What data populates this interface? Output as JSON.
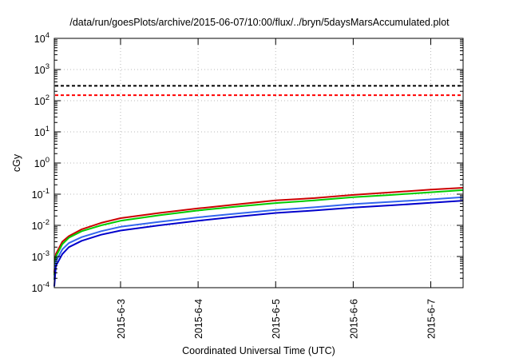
{
  "chart_data": {
    "type": "line",
    "title": "/data/run/goesPlots/archive/2015-06-07/10:00/flux/../bryn/5daysMarsAccumulated.plot",
    "xlabel": "Coordinated Universal Time (UTC)",
    "ylabel": "cGy",
    "y_scale": "log",
    "ylim": [
      0.0001,
      10000
    ],
    "xlim": [
      "2015-06-02T03:30",
      "2015-06-07T10:00"
    ],
    "y_ticks": [
      {
        "base": "10",
        "exp": "-4",
        "value": 0.0001
      },
      {
        "base": "10",
        "exp": "-3",
        "value": 0.001
      },
      {
        "base": "10",
        "exp": "-2",
        "value": 0.01
      },
      {
        "base": "10",
        "exp": "-1",
        "value": 0.1
      },
      {
        "base": "10",
        "exp": "0",
        "value": 1
      },
      {
        "base": "10",
        "exp": "1",
        "value": 10
      },
      {
        "base": "10",
        "exp": "2",
        "value": 100
      },
      {
        "base": "10",
        "exp": "3",
        "value": 1000
      },
      {
        "base": "10",
        "exp": "4",
        "value": 10000
      }
    ],
    "x_ticks": [
      {
        "label": "2015-6-3",
        "value": "2015-06-03T00:00"
      },
      {
        "label": "2015-6-4",
        "value": "2015-06-04T00:00"
      },
      {
        "label": "2015-6-5",
        "value": "2015-06-05T00:00"
      },
      {
        "label": "2015-6-6",
        "value": "2015-06-06T00:00"
      },
      {
        "label": "2015-6-7",
        "value": "2015-06-07T00:00"
      }
    ],
    "grid": true,
    "reference_lines": [
      {
        "y": 300,
        "color": "#000000",
        "style": "dashed"
      },
      {
        "y": 150,
        "color": "#ff0000",
        "style": "dashed"
      }
    ],
    "series": [
      {
        "color": "#cc0000",
        "points": [
          [
            "2015-06-02T03:30",
            0.0003
          ],
          [
            "2015-06-02T04:00",
            0.0012
          ],
          [
            "2015-06-02T06:00",
            0.003
          ],
          [
            "2015-06-02T08:00",
            0.0045
          ],
          [
            "2015-06-02T12:00",
            0.0075
          ],
          [
            "2015-06-02T18:00",
            0.012
          ],
          [
            "2015-06-03T00:00",
            0.017
          ],
          [
            "2015-06-03T12:00",
            0.025
          ],
          [
            "2015-06-04T00:00",
            0.035
          ],
          [
            "2015-06-04T12:00",
            0.047
          ],
          [
            "2015-06-05T00:00",
            0.063
          ],
          [
            "2015-06-05T12:00",
            0.075
          ],
          [
            "2015-06-06T00:00",
            0.095
          ],
          [
            "2015-06-06T12:00",
            0.115
          ],
          [
            "2015-06-07T00:00",
            0.14
          ],
          [
            "2015-06-07T10:00",
            0.16
          ]
        ]
      },
      {
        "color": "#00cc00",
        "points": [
          [
            "2015-06-02T03:30",
            0.00025
          ],
          [
            "2015-06-02T04:00",
            0.001
          ],
          [
            "2015-06-02T06:00",
            0.0025
          ],
          [
            "2015-06-02T08:00",
            0.004
          ],
          [
            "2015-06-02T12:00",
            0.0065
          ],
          [
            "2015-06-02T18:00",
            0.01
          ],
          [
            "2015-06-03T00:00",
            0.014
          ],
          [
            "2015-06-03T12:00",
            0.021
          ],
          [
            "2015-06-04T00:00",
            0.03
          ],
          [
            "2015-06-04T12:00",
            0.04
          ],
          [
            "2015-06-05T00:00",
            0.052
          ],
          [
            "2015-06-05T12:00",
            0.063
          ],
          [
            "2015-06-06T00:00",
            0.08
          ],
          [
            "2015-06-06T12:00",
            0.095
          ],
          [
            "2015-06-07T00:00",
            0.115
          ],
          [
            "2015-06-07T10:00",
            0.135
          ]
        ]
      },
      {
        "color": "#3366ee",
        "points": [
          [
            "2015-06-02T03:30",
            0.00018
          ],
          [
            "2015-06-02T04:00",
            0.0007
          ],
          [
            "2015-06-02T06:00",
            0.0017
          ],
          [
            "2015-06-02T08:00",
            0.0027
          ],
          [
            "2015-06-02T12:00",
            0.0042
          ],
          [
            "2015-06-02T18:00",
            0.0065
          ],
          [
            "2015-06-03T00:00",
            0.009
          ],
          [
            "2015-06-03T12:00",
            0.013
          ],
          [
            "2015-06-04T00:00",
            0.018
          ],
          [
            "2015-06-04T12:00",
            0.024
          ],
          [
            "2015-06-05T00:00",
            0.031
          ],
          [
            "2015-06-05T12:00",
            0.038
          ],
          [
            "2015-06-06T00:00",
            0.048
          ],
          [
            "2015-06-06T12:00",
            0.057
          ],
          [
            "2015-06-07T00:00",
            0.068
          ],
          [
            "2015-06-07T10:00",
            0.08
          ]
        ]
      },
      {
        "color": "#0000cc",
        "points": [
          [
            "2015-06-02T03:30",
            0.00011
          ],
          [
            "2015-06-02T04:00",
            0.0005
          ],
          [
            "2015-06-02T06:00",
            0.0012
          ],
          [
            "2015-06-02T08:00",
            0.002
          ],
          [
            "2015-06-02T12:00",
            0.0032
          ],
          [
            "2015-06-02T18:00",
            0.005
          ],
          [
            "2015-06-03T00:00",
            0.0068
          ],
          [
            "2015-06-03T12:00",
            0.01
          ],
          [
            "2015-06-04T00:00",
            0.014
          ],
          [
            "2015-06-04T12:00",
            0.019
          ],
          [
            "2015-06-05T00:00",
            0.025
          ],
          [
            "2015-06-05T12:00",
            0.03
          ],
          [
            "2015-06-06T00:00",
            0.037
          ],
          [
            "2015-06-06T12:00",
            0.044
          ],
          [
            "2015-06-07T00:00",
            0.053
          ],
          [
            "2015-06-07T10:00",
            0.062
          ]
        ]
      }
    ]
  }
}
